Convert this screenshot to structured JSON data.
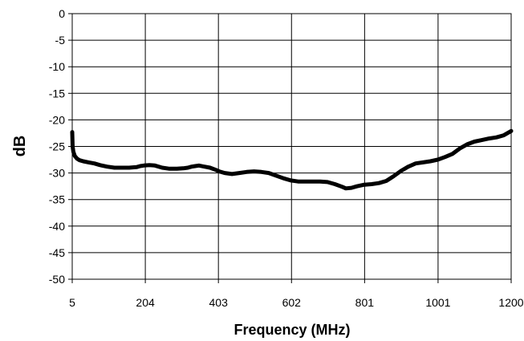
{
  "chart_data": {
    "type": "line",
    "title": "",
    "xlabel": "Frequency (MHz)",
    "ylabel": "dB",
    "xlim": [
      5,
      1200
    ],
    "ylim": [
      -50,
      0
    ],
    "grid": true,
    "legend": "none",
    "x_ticks": [
      "5",
      "204",
      "403",
      "602",
      "801",
      "1001",
      "1200"
    ],
    "x_tick_values": [
      5,
      204,
      403,
      602,
      801,
      1001,
      1200
    ],
    "y_ticks": [
      "0",
      "-5",
      "-10",
      "-15",
      "-20",
      "-25",
      "-30",
      "-35",
      "-40",
      "-45",
      "-50"
    ],
    "y_tick_values": [
      0,
      -5,
      -10,
      -15,
      -20,
      -25,
      -30,
      -35,
      -40,
      -45,
      -50
    ],
    "line_color": "#000000",
    "series": [
      {
        "x": [
          5,
          6,
          8,
          12,
          18,
          25,
          35,
          50,
          65,
          80,
          100,
          120,
          140,
          160,
          180,
          190,
          200,
          215,
          230,
          250,
          270,
          290,
          310,
          320,
          330,
          340,
          350,
          365,
          380,
          395,
          405,
          420,
          440,
          460,
          480,
          500,
          520,
          540,
          560,
          580,
          600,
          620,
          640,
          660,
          680,
          700,
          720,
          740,
          750,
          765,
          780,
          800,
          820,
          840,
          860,
          880,
          900,
          920,
          940,
          960,
          980,
          1000,
          1020,
          1040,
          1060,
          1080,
          1100,
          1120,
          1140,
          1160,
          1180,
          1200
        ],
        "y": [
          -22.3,
          -25.0,
          -26.0,
          -26.8,
          -27.3,
          -27.6,
          -27.8,
          -28.0,
          -28.2,
          -28.5,
          -28.8,
          -29.0,
          -29.0,
          -29.0,
          -28.9,
          -28.7,
          -28.6,
          -28.5,
          -28.6,
          -29.0,
          -29.2,
          -29.2,
          -29.1,
          -29.0,
          -28.8,
          -28.7,
          -28.6,
          -28.8,
          -29.0,
          -29.4,
          -29.7,
          -30.0,
          -30.2,
          -30.0,
          -29.8,
          -29.7,
          -29.8,
          -30.0,
          -30.5,
          -31.0,
          -31.4,
          -31.6,
          -31.6,
          -31.6,
          -31.6,
          -31.7,
          -32.1,
          -32.6,
          -32.9,
          -32.8,
          -32.5,
          -32.2,
          -32.1,
          -31.9,
          -31.5,
          -30.6,
          -29.6,
          -28.8,
          -28.2,
          -28.0,
          -27.8,
          -27.5,
          -27.0,
          -26.4,
          -25.4,
          -24.6,
          -24.1,
          -23.8,
          -23.5,
          -23.3,
          -22.9,
          -22.1
        ]
      }
    ]
  }
}
